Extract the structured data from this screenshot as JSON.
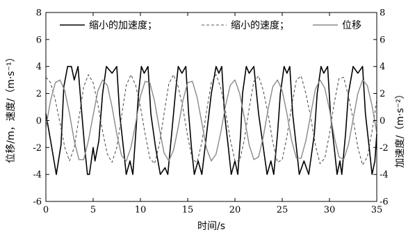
{
  "chart_data": {
    "type": "line",
    "title": "",
    "xlabel": "时间/s",
    "ylabel_left": "位移/m，速度/（m·s⁻¹）",
    "ylabel_right": "加速度/（m·s⁻²）",
    "xlim": [
      0,
      35
    ],
    "ylim": [
      -6,
      8
    ],
    "ylim_right": [
      -6,
      8
    ],
    "x_ticks": [
      "0",
      "5",
      "10",
      "15",
      "20",
      "25",
      "30",
      "35"
    ],
    "y_ticks_left": [
      "-6",
      "-4",
      "-2",
      "0",
      "2",
      "4",
      "6",
      "8"
    ],
    "y_ticks_right": [
      "-6",
      "-4",
      "-2",
      "0",
      "2",
      "4",
      "6",
      "8"
    ],
    "grid": false,
    "legend_position": "top",
    "series": [
      {
        "name": "缩小的加速度；",
        "style": "solid",
        "color": "#000000",
        "x": [
          0,
          0.5,
          1.1,
          1.6,
          1.9,
          2.3,
          2.7,
          3.0,
          3.4,
          3.8,
          4.1,
          4.4,
          4.6,
          5.0,
          5.2,
          5.6,
          6.0,
          6.4,
          7.0,
          7.5,
          7.8,
          8.2,
          8.5,
          8.9,
          9.2,
          9.5,
          9.8,
          10.1,
          10.4,
          10.8,
          11.1,
          11.6,
          12.1,
          12.6,
          12.9,
          13.3,
          13.7,
          14.0,
          14.4,
          14.8,
          15.1,
          15.4,
          15.7,
          16.1,
          16.5,
          17.0,
          17.5,
          18.0,
          18.3,
          18.6,
          18.9,
          19.3,
          19.6,
          20.0,
          20.3,
          20.6,
          20.8,
          21.2,
          21.5,
          22.0,
          22.5,
          23.0,
          23.4,
          23.8,
          24.1,
          24.5,
          24.8,
          25.2,
          25.5,
          25.8,
          26.1,
          26.5,
          26.8,
          27.3,
          27.8,
          28.4,
          28.7,
          29.1,
          29.4,
          29.8,
          30.1,
          30.5,
          30.8,
          31.1,
          31.3,
          31.7,
          32.0,
          32.5,
          33.0,
          33.5,
          33.8,
          34.2,
          34.5,
          34.8,
          35.0
        ],
        "values": [
          0.5,
          -1.5,
          -4.0,
          -1.8,
          2.5,
          4.0,
          4.0,
          3.0,
          4.0,
          0.5,
          -2.0,
          -4.0,
          -4.0,
          -2.0,
          -3.0,
          -1.5,
          2.0,
          4.0,
          3.5,
          4.0,
          0.5,
          -2.0,
          -4.0,
          -3.0,
          -4.0,
          -1.0,
          2.0,
          4.0,
          3.5,
          4.0,
          0.5,
          -2.0,
          -4.0,
          -3.5,
          -4.0,
          -1.0,
          2.0,
          4.0,
          3.5,
          4.0,
          0.5,
          -2.0,
          -4.0,
          -3.0,
          -4.0,
          -1.0,
          2.0,
          4.0,
          3.5,
          4.0,
          0.5,
          -2.0,
          -4.0,
          -3.0,
          -4.0,
          -1.0,
          2.0,
          4.0,
          3.5,
          4.0,
          0.5,
          -2.0,
          -4.0,
          -3.0,
          -4.0,
          -1.0,
          2.0,
          4.0,
          3.5,
          4.0,
          0.5,
          -2.0,
          -4.0,
          -3.0,
          -4.0,
          -1.0,
          2.0,
          4.0,
          3.5,
          4.0,
          0.5,
          -2.0,
          -4.0,
          -3.0,
          -4.0,
          -1.0,
          2.0,
          4.0,
          3.5,
          4.0,
          0.5,
          -2.0,
          -4.0,
          -3.0,
          -1.0
        ]
      },
      {
        "name": "缩小的速度；",
        "style": "dashed",
        "color": "#555555",
        "x": [
          0,
          0.5,
          1.0,
          1.5,
          2.0,
          2.5,
          3.0,
          3.5,
          4.0,
          4.5,
          5.0,
          5.5,
          6.0,
          6.5,
          7.0,
          7.5,
          8.0,
          8.5,
          9.0,
          9.5,
          10.0,
          10.5,
          11.0,
          11.5,
          12.0,
          12.5,
          13.0,
          13.5,
          14.0,
          14.5,
          15.0,
          15.5,
          16.0,
          16.5,
          17.0,
          17.5,
          18.0,
          18.5,
          19.0,
          19.5,
          20.0,
          20.5,
          21.0,
          21.5,
          22.0,
          22.5,
          23.0,
          23.5,
          24.0,
          24.5,
          25.0,
          25.5,
          26.0,
          26.5,
          27.0,
          27.5,
          28.0,
          28.5,
          29.0,
          29.5,
          30.0,
          30.5,
          31.0,
          31.5,
          32.0,
          32.5,
          33.0,
          33.5,
          34.0,
          34.5,
          35.0
        ],
        "values": [
          3.2,
          2.8,
          1.5,
          -0.2,
          -2.0,
          -3.0,
          -2.0,
          0.2,
          2.5,
          3.4,
          2.8,
          1.2,
          -0.8,
          -2.5,
          -3.1,
          -2.0,
          0.3,
          2.6,
          3.4,
          2.6,
          1.0,
          -1.0,
          -2.8,
          -3.2,
          -1.8,
          0.5,
          2.7,
          3.4,
          2.5,
          0.9,
          -1.2,
          -2.9,
          -3.1,
          -1.6,
          0.7,
          2.8,
          3.4,
          2.4,
          0.7,
          -1.4,
          -3.0,
          -3.0,
          -1.4,
          0.9,
          2.9,
          3.3,
          2.2,
          0.5,
          -1.6,
          -3.1,
          -2.9,
          -1.2,
          1.1,
          3.0,
          3.3,
          2.0,
          0.3,
          -1.8,
          -3.2,
          -2.8,
          -1.0,
          1.3,
          3.1,
          3.2,
          1.8,
          0.1,
          -2.0,
          -3.3,
          -2.7,
          -0.8,
          1.5
        ]
      },
      {
        "name": "位移",
        "style": "solid",
        "color": "#888888",
        "x": [
          0,
          0.5,
          1.0,
          1.5,
          2.0,
          2.5,
          3.0,
          3.5,
          4.0,
          4.5,
          5.0,
          5.5,
          6.0,
          6.5,
          7.0,
          7.5,
          8.0,
          8.5,
          9.0,
          9.5,
          10.0,
          10.5,
          11.0,
          11.5,
          12.0,
          12.5,
          13.0,
          13.5,
          14.0,
          14.5,
          15.0,
          15.5,
          16.0,
          16.5,
          17.0,
          17.5,
          18.0,
          18.5,
          19.0,
          19.5,
          20.0,
          20.5,
          21.0,
          21.5,
          22.0,
          22.5,
          23.0,
          23.5,
          24.0,
          24.5,
          25.0,
          25.5,
          26.0,
          26.5,
          27.0,
          27.5,
          28.0,
          28.5,
          29.0,
          29.5,
          30.0,
          30.5,
          31.0,
          31.5,
          32.0,
          32.5,
          33.0,
          33.5,
          34.0,
          34.5,
          35.0
        ],
        "values": [
          -0.5,
          1.5,
          2.8,
          3.0,
          2.2,
          0.5,
          -1.5,
          -2.9,
          -2.9,
          -1.5,
          0.4,
          2.2,
          3.0,
          2.6,
          1.0,
          -1.0,
          -2.6,
          -3.0,
          -2.0,
          -0.2,
          1.8,
          2.9,
          2.8,
          1.4,
          -0.6,
          -2.4,
          -3.0,
          -2.2,
          -0.5,
          1.5,
          2.8,
          2.9,
          1.7,
          -0.2,
          -2.1,
          -3.0,
          -2.5,
          -0.9,
          1.1,
          2.6,
          3.0,
          2.0,
          0.2,
          -1.8,
          -2.9,
          -2.7,
          -1.2,
          0.8,
          2.5,
          3.0,
          2.2,
          0.5,
          -1.5,
          -2.8,
          -2.8,
          -1.5,
          0.4,
          2.3,
          3.0,
          2.4,
          0.8,
          -1.2,
          -2.7,
          -2.9,
          -1.8,
          0.1,
          2.0,
          3.0,
          2.6,
          1.1,
          -0.9
        ]
      }
    ]
  }
}
